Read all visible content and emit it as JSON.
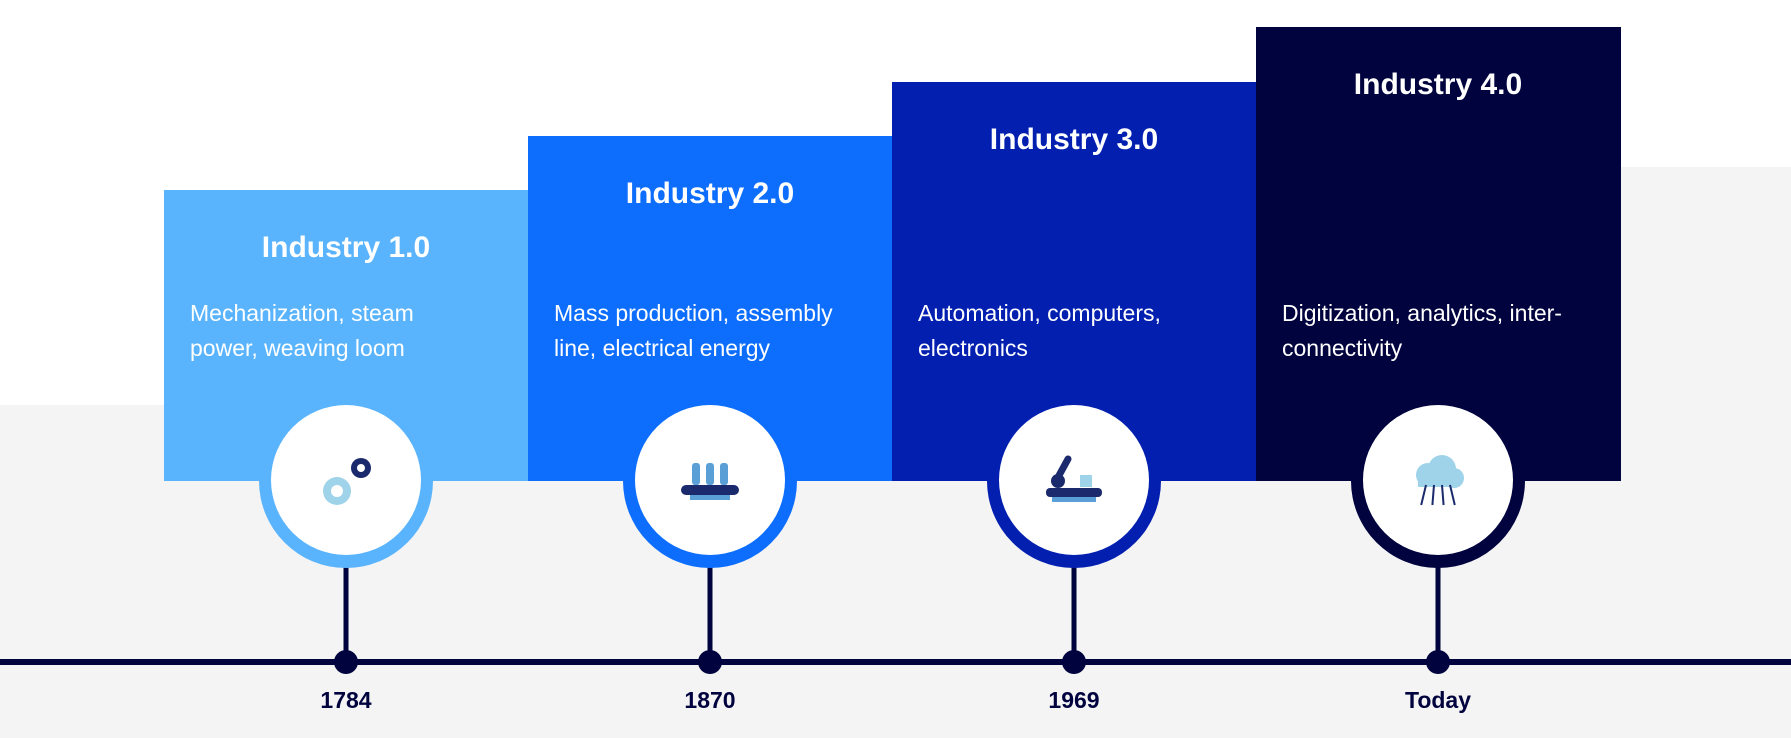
{
  "stages": [
    {
      "title": "Industry 1.0",
      "description": [
        "Mechanization, steam",
        "power, weaving loom"
      ],
      "year": "1784"
    },
    {
      "title": "Industry 2.0",
      "description": [
        "Mass production, assembly",
        "line, electrical energy"
      ],
      "year": "1870"
    },
    {
      "title": "Industry 3.0",
      "description": [
        "Automation, computers,",
        "electronics"
      ],
      "year": "1969"
    },
    {
      "title": "Industry 4.0",
      "description": [
        "Digitization, analytics, inter-",
        "connectivity"
      ],
      "year": "Today"
    }
  ]
}
